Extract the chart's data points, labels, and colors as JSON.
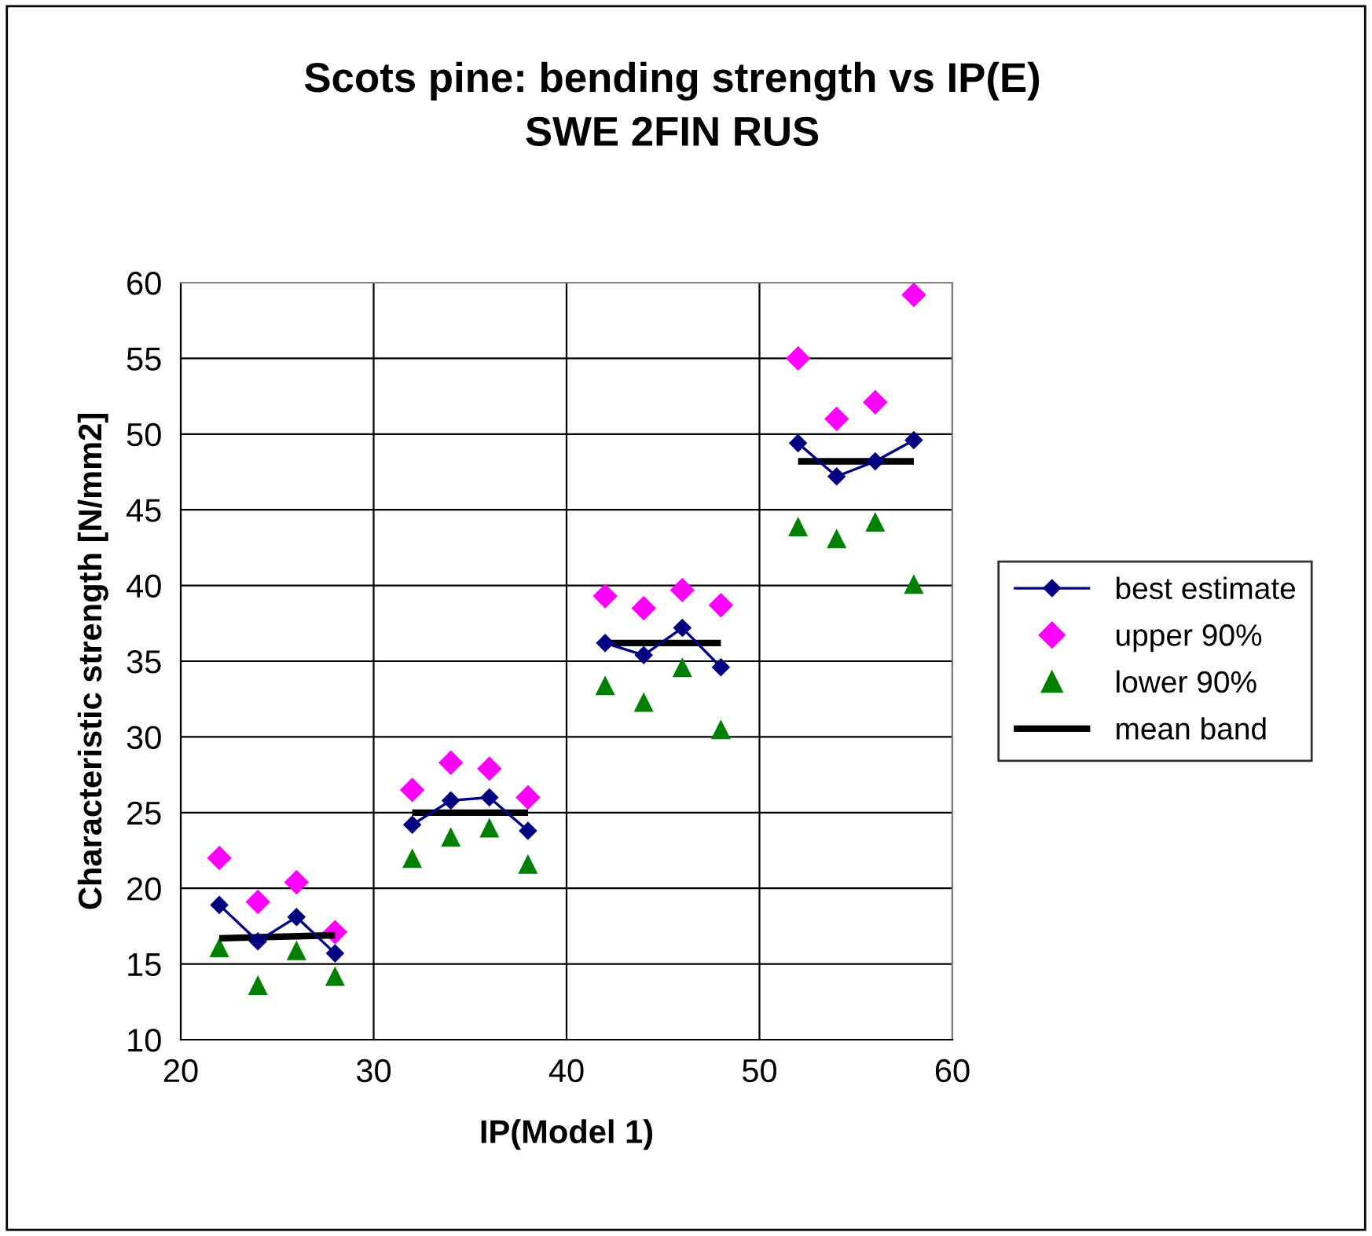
{
  "chart_data": {
    "type": "line",
    "title": "Scots pine: bending strength vs IP(E)\nSWE 2FIN RUS",
    "xlabel": "IP(Model 1)",
    "ylabel": "Characteristic strength [N/mm2]",
    "xlim": [
      20,
      60
    ],
    "xticks": [
      20,
      30,
      40,
      50,
      60
    ],
    "ylim": [
      10,
      60
    ],
    "yticks": [
      10,
      15,
      20,
      25,
      30,
      35,
      40,
      45,
      50,
      55,
      60
    ],
    "grid": true,
    "legend": "right",
    "series": [
      {
        "name": "best estimate",
        "color": "#000080",
        "marker": "diamond",
        "x": [
          22,
          24,
          26,
          28,
          null,
          32,
          34,
          36,
          38,
          null,
          42,
          44,
          46,
          48,
          null,
          52,
          54,
          56,
          58
        ],
        "values": [
          18.9,
          16.5,
          18.1,
          15.7,
          null,
          24.2,
          25.8,
          26.0,
          23.8,
          null,
          36.2,
          35.4,
          37.2,
          34.6,
          null,
          49.4,
          47.2,
          48.2,
          49.6
        ]
      },
      {
        "name": "upper 90%",
        "type": "scatter",
        "color": "#ff00ff",
        "marker": "diamond",
        "x": [
          22,
          24,
          26,
          28,
          32,
          34,
          36,
          38,
          42,
          44,
          46,
          48,
          52,
          54,
          56,
          58
        ],
        "values": [
          22.0,
          19.1,
          20.4,
          17.1,
          26.5,
          28.3,
          27.9,
          26.0,
          39.3,
          38.5,
          39.7,
          38.7,
          55.0,
          51.0,
          52.1,
          59.2
        ]
      },
      {
        "name": "lower 90%",
        "type": "scatter",
        "color": "#008000",
        "marker": "triangle",
        "x": [
          22,
          24,
          26,
          28,
          32,
          34,
          36,
          38,
          42,
          44,
          46,
          48,
          52,
          54,
          56,
          58
        ],
        "values": [
          16.1,
          13.6,
          15.9,
          14.2,
          22.0,
          23.4,
          24.0,
          21.6,
          33.4,
          32.3,
          34.6,
          30.5,
          43.9,
          43.1,
          44.2,
          40.1
        ]
      },
      {
        "name": "mean band",
        "color": "#000000",
        "marker": "none",
        "x": [
          22,
          28,
          null,
          32,
          38,
          null,
          42,
          48,
          null,
          52,
          58
        ],
        "values": [
          16.7,
          16.9,
          null,
          25.0,
          25.0,
          null,
          36.2,
          36.2,
          null,
          48.2,
          48.2
        ]
      }
    ]
  }
}
